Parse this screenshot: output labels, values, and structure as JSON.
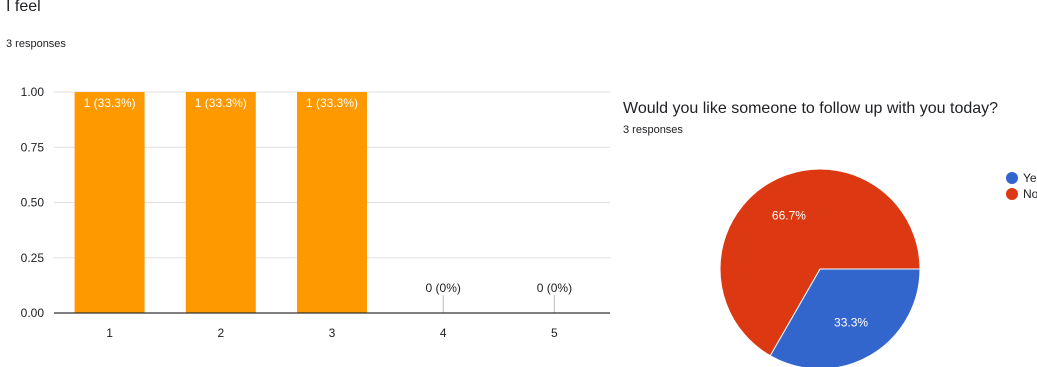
{
  "left": {
    "title": "I feel",
    "responses": "3 responses"
  },
  "right": {
    "title": "Would you like someone to follow up with you today?",
    "responses": "3 responses"
  },
  "chart_data": [
    {
      "type": "bar",
      "title": "I feel",
      "categories": [
        "1",
        "2",
        "3",
        "4",
        "5"
      ],
      "values": [
        1,
        1,
        1,
        0,
        0
      ],
      "data_labels": [
        "1 (33.3%)",
        "1 (33.3%)",
        "1 (33.3%)",
        "0 (0%)",
        "0 (0%)"
      ],
      "ylim": [
        0,
        1
      ],
      "yticks": [
        "0.00",
        "0.25",
        "0.50",
        "0.75",
        "1.00"
      ],
      "grid": true,
      "color": "#ff9900"
    },
    {
      "type": "pie",
      "title": "Would you like someone to follow up with you today?",
      "labels": [
        "Yes",
        "No"
      ],
      "values": [
        33.3,
        66.7
      ],
      "data_labels": [
        "33.3%",
        "66.7%"
      ],
      "colors": [
        "#3366cc",
        "#dc3912"
      ],
      "legend": "right"
    }
  ]
}
